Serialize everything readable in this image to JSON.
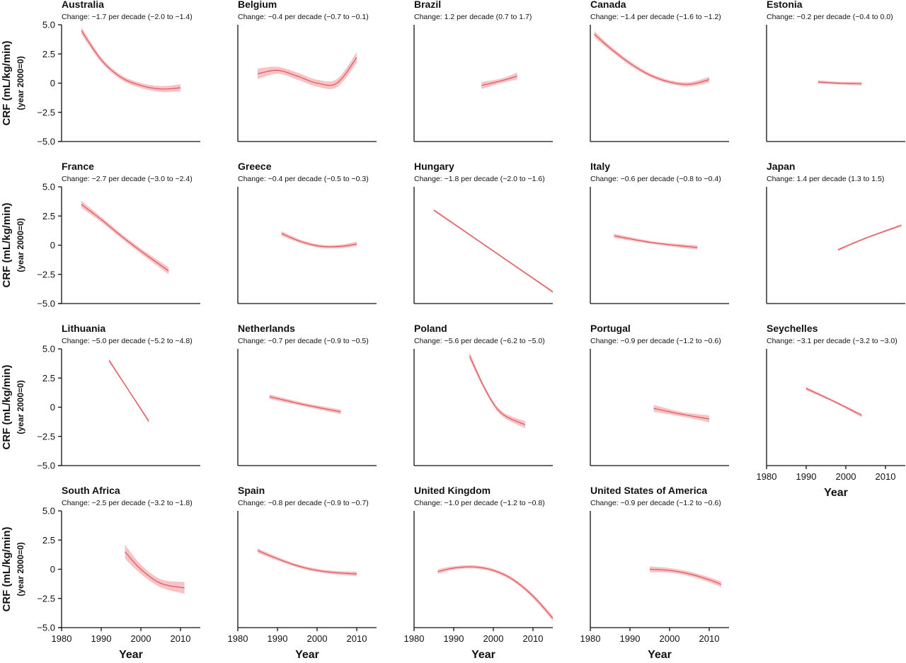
{
  "chart_data": {
    "type": "line",
    "xlabel": "Year",
    "ylabel": "CRF (mL/kg/min)",
    "ylabel2": "(year 2000=0)",
    "xlim": [
      1980,
      2015
    ],
    "ylim": [
      -5.0,
      5.0
    ],
    "x_ticks": [
      "1980",
      "1990",
      "2000",
      "2010"
    ],
    "y_ticks": [
      "5.0",
      "2.5",
      "0",
      "−2.5",
      "−5.0"
    ],
    "line_color": "#e0525a",
    "band_color": "#f6b8bb",
    "panels": [
      {
        "name": "Australia",
        "change": "Change: −1.7 per decade (−2.0 to −1.4)",
        "x": [
          1985,
          1990,
          1995,
          2000,
          2005,
          2010
        ],
        "y": [
          4.5,
          2.0,
          0.5,
          -0.2,
          -0.5,
          -0.4
        ],
        "band": [
          0.3,
          0.22,
          0.2,
          0.22,
          0.25,
          0.3
        ]
      },
      {
        "name": "Belgium",
        "change": "Change: −0.4 per decade (−0.7 to −0.1)",
        "x": [
          1985,
          1990,
          1995,
          2000,
          2005,
          2010
        ],
        "y": [
          0.8,
          1.1,
          0.6,
          0.0,
          0.0,
          2.2
        ],
        "band": [
          0.45,
          0.3,
          0.3,
          0.3,
          0.35,
          0.45
        ]
      },
      {
        "name": "Brazil",
        "change": "Change: 1.2 per decade (0.7 to 1.7)",
        "x": [
          1997,
          2002,
          2006
        ],
        "y": [
          -0.2,
          0.2,
          0.6
        ],
        "band": [
          0.3,
          0.2,
          0.3
        ]
      },
      {
        "name": "Canada",
        "change": "Change: −1.4 per decade (−1.6 to −1.2)",
        "x": [
          1981,
          1985,
          1990,
          1995,
          2000,
          2005,
          2010
        ],
        "y": [
          4.2,
          3.0,
          1.7,
          0.7,
          0.1,
          -0.1,
          0.3
        ],
        "band": [
          0.28,
          0.2,
          0.18,
          0.16,
          0.16,
          0.18,
          0.25
        ]
      },
      {
        "name": "Estonia",
        "change": "Change: −0.2 per decade (−0.4 to 0.0)",
        "x": [
          1993,
          1998,
          2004
        ],
        "y": [
          0.1,
          0.0,
          -0.05
        ],
        "band": [
          0.15,
          0.12,
          0.15
        ]
      },
      {
        "name": "France",
        "change": "Change: −2.7 per decade (−3.0 to −2.4)",
        "x": [
          1985,
          1990,
          1995,
          2000,
          2007
        ],
        "y": [
          3.5,
          2.2,
          0.8,
          -0.5,
          -2.2
        ],
        "band": [
          0.3,
          0.22,
          0.2,
          0.22,
          0.3
        ]
      },
      {
        "name": "Greece",
        "change": "Change: −0.4 per decade (−0.5 to −0.3)",
        "x": [
          1991,
          1996,
          2001,
          2006,
          2010
        ],
        "y": [
          1.0,
          0.3,
          -0.1,
          -0.1,
          0.1
        ],
        "band": [
          0.2,
          0.15,
          0.14,
          0.15,
          0.2
        ]
      },
      {
        "name": "Hungary",
        "change": "Change: −1.8 per decade (−2.0 to −1.6)",
        "x": [
          1985,
          2000,
          2015
        ],
        "y": [
          3.0,
          -0.5,
          -4.0
        ],
        "band": [
          0.1,
          0.08,
          0.1
        ]
      },
      {
        "name": "Italy",
        "change": "Change: −0.6 per decade (−0.8 to −0.4)",
        "x": [
          1986,
          1996,
          2007
        ],
        "y": [
          0.8,
          0.2,
          -0.2
        ],
        "band": [
          0.18,
          0.12,
          0.18
        ]
      },
      {
        "name": "Japan",
        "change": "Change: 1.4 per decade (1.3 to 1.5)",
        "x": [
          1998,
          2005,
          2014
        ],
        "y": [
          -0.4,
          0.6,
          1.7
        ],
        "band": [
          0.1,
          0.08,
          0.1
        ]
      },
      {
        "name": "Lithuania",
        "change": "Change: −5.0 per decade (−5.2 to −4.8)",
        "x": [
          1992,
          1997,
          2002
        ],
        "y": [
          4.0,
          1.4,
          -1.2
        ],
        "band": [
          0.15,
          0.1,
          0.15
        ]
      },
      {
        "name": "Netherlands",
        "change": "Change: −0.7 per decade (−0.9 to −0.5)",
        "x": [
          1988,
          1997,
          2006
        ],
        "y": [
          0.9,
          0.2,
          -0.4
        ],
        "band": [
          0.2,
          0.15,
          0.2
        ]
      },
      {
        "name": "Poland",
        "change": "Change: −5.6 per decade (−6.2 to −5.0)",
        "x": [
          1994,
          1998,
          2002,
          2008
        ],
        "y": [
          4.4,
          1.5,
          -0.5,
          -1.5
        ],
        "band": [
          0.3,
          0.2,
          0.2,
          0.3
        ]
      },
      {
        "name": "Portugal",
        "change": "Change: −0.9 per decade (−1.2 to −0.6)",
        "x": [
          1996,
          2003,
          2010
        ],
        "y": [
          -0.1,
          -0.6,
          -1.0
        ],
        "band": [
          0.3,
          0.2,
          0.3
        ]
      },
      {
        "name": "Seychelles",
        "change": "Change: −3.1 per decade (−3.2 to −3.0)",
        "x": [
          1990,
          1997,
          2004
        ],
        "y": [
          1.6,
          0.5,
          -0.7
        ],
        "band": [
          0.15,
          0.1,
          0.15
        ]
      },
      {
        "name": "South Africa",
        "change": "Change: −2.5 per decade (−3.2 to −1.8)",
        "x": [
          1996,
          2000,
          2005,
          2011
        ],
        "y": [
          1.5,
          0.0,
          -1.2,
          -1.6
        ],
        "band": [
          0.6,
          0.4,
          0.35,
          0.5
        ]
      },
      {
        "name": "Spain",
        "change": "Change: −0.8 per decade (−0.9 to −0.7)",
        "x": [
          1985,
          1990,
          1995,
          2000,
          2005,
          2010
        ],
        "y": [
          1.6,
          0.9,
          0.3,
          -0.1,
          -0.3,
          -0.4
        ],
        "band": [
          0.2,
          0.15,
          0.14,
          0.14,
          0.15,
          0.2
        ]
      },
      {
        "name": "United Kingdom",
        "change": "Change: −1.0 per decade (−1.2 to −0.8)",
        "x": [
          1986,
          1990,
          1995,
          2000,
          2005,
          2010,
          2015
        ],
        "y": [
          -0.2,
          0.1,
          0.2,
          -0.1,
          -0.9,
          -2.3,
          -4.2
        ],
        "band": [
          0.2,
          0.15,
          0.14,
          0.14,
          0.15,
          0.18,
          0.22
        ]
      },
      {
        "name": "United States of America",
        "change": "Change: −0.9 per decade (−1.2 to −0.6)",
        "x": [
          1995,
          2000,
          2005,
          2010,
          2013
        ],
        "y": [
          0.0,
          -0.1,
          -0.4,
          -0.9,
          -1.3
        ],
        "band": [
          0.25,
          0.2,
          0.2,
          0.22,
          0.25
        ]
      }
    ]
  }
}
